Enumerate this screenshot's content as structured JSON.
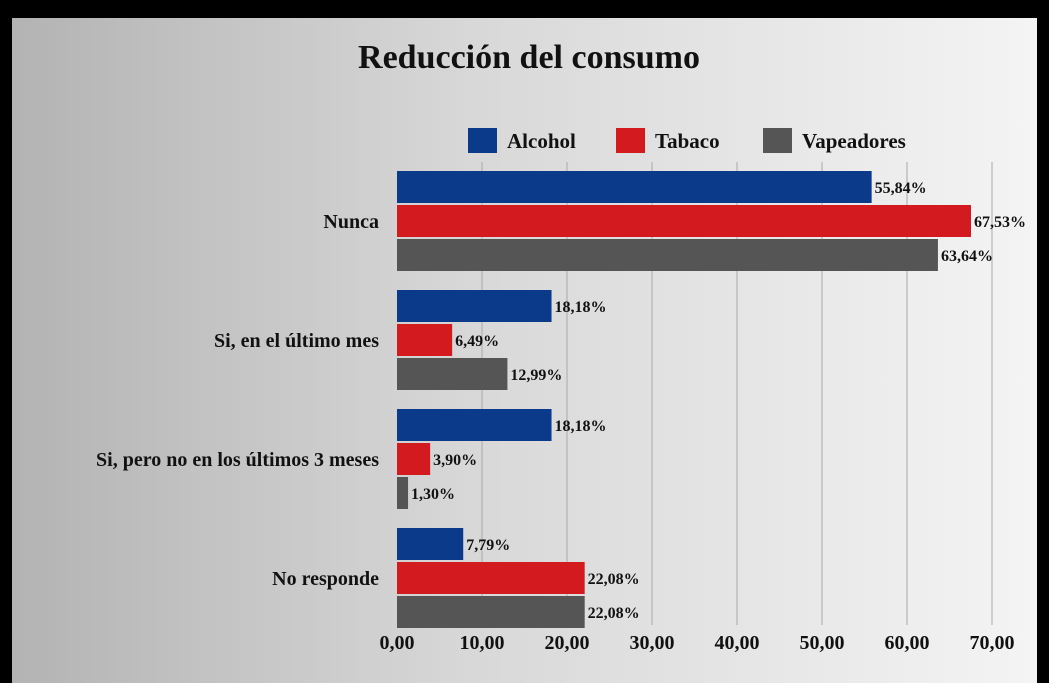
{
  "chart_data": {
    "type": "bar",
    "orientation": "horizontal",
    "title": "Reducción del consumo",
    "categories": [
      "Nunca",
      "Si, en el último mes",
      "Si, pero no en los últimos 3 meses",
      "No responde"
    ],
    "series": [
      {
        "name": "Alcohol",
        "color": "#0b3a8a",
        "values": [
          55.84,
          18.18,
          18.18,
          7.79
        ],
        "labels": [
          "55,84%",
          "18,18%",
          "18,18%",
          "7,79%"
        ]
      },
      {
        "name": "Tabaco",
        "color": "#d31b1f",
        "values": [
          67.53,
          6.49,
          3.9,
          22.08
        ],
        "labels": [
          "67,53%",
          "6,49%",
          "3,90%",
          "22,08%"
        ]
      },
      {
        "name": "Vapeadores",
        "color": "#555555",
        "values": [
          63.64,
          12.99,
          1.3,
          22.08
        ],
        "labels": [
          "63,64%",
          "12,99%",
          "1,30%",
          "22,08%"
        ]
      }
    ],
    "xlim": [
      0,
      70
    ],
    "xticks": [
      0,
      10,
      20,
      30,
      40,
      50,
      60,
      70
    ],
    "xtick_labels": [
      "0,00",
      "10,00",
      "20,00",
      "30,00",
      "40,00",
      "50,00",
      "60,00",
      "70,00"
    ],
    "grid": "vertical",
    "legend_position": "top"
  }
}
